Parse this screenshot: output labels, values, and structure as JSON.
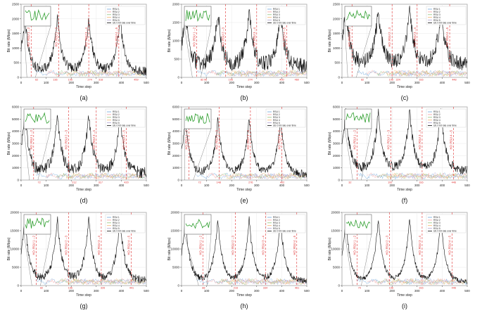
{
  "figure": {
    "panels": [
      {
        "label": "(a)",
        "ymax": 2500,
        "yticks": [
          0,
          500,
          1000,
          1500,
          2000,
          2500
        ],
        "ho_positions": [
          62,
          136,
          196,
          274,
          318,
          459
        ],
        "ho_labels": [
          "HO: RSU 1→2",
          "HO: RSU 2→3",
          "HO: RSU 3→4",
          "HO: RSU 4→5"
        ],
        "ho_at": [
          40,
          150,
          270,
          390
        ],
        "tick_labels": [
          "62",
          "136",
          "196",
          "274",
          "318",
          "459"
        ],
        "rsu_count": 5,
        "base_level": 200,
        "peak_level": 1850,
        "spikiness": 1.0
      },
      {
        "label": "(b)",
        "ymax": 2000,
        "yticks": [
          0,
          500,
          1000,
          1500,
          2000
        ],
        "ho_positions": [
          82,
          96,
          196,
          274,
          400,
          460
        ],
        "ho_labels": [
          "HO: RSU 1→2",
          "HO: RSU 2→3",
          "HO: RSU 3→4",
          "HO: RSU 4→5"
        ],
        "ho_at": [
          60,
          175,
          300,
          420
        ],
        "tick_labels": [
          "82",
          "96",
          "196",
          "274",
          "400",
          "460"
        ],
        "rsu_count": 5,
        "base_level": 300,
        "peak_level": 1500,
        "spikiness": 0.9
      },
      {
        "label": "(c)",
        "ymax": 2500,
        "yticks": [
          0,
          500,
          1000,
          1500,
          2000,
          2500
        ],
        "ho_positions": [
          82,
          196,
          224,
          316,
          448
        ],
        "ho_labels": [
          "HO: RSU 1→2",
          "HO: RSU 2→3",
          "HO: RSU 3→4",
          "HO: RSU 4→5"
        ],
        "ho_at": [
          40,
          200,
          300,
          430
        ],
        "tick_labels": [
          "82",
          "196",
          "224",
          "316",
          "448"
        ],
        "rsu_count": 5,
        "base_level": 450,
        "peak_level": 1900,
        "spikiness": 0.7
      },
      {
        "label": "(d)",
        "ymax": 6000,
        "yticks": [
          0,
          1000,
          2000,
          3000,
          4000,
          5000,
          6000
        ],
        "ho_positions": [
          72,
          212,
          317,
          420
        ],
        "ho_labels": [
          "HO: RSU 1→2",
          "HO: RSU 2→3",
          "HO: RSU 3→4",
          "HO: RSU 4→5"
        ],
        "ho_at": [
          50,
          190,
          300,
          420
        ],
        "tick_labels": [
          "72",
          "212",
          "317",
          "420"
        ],
        "rsu_count": 5,
        "base_level": 600,
        "peak_level": 4800,
        "spikiness": 1.0
      },
      {
        "label": "(e)",
        "ymax": 6000,
        "yticks": [
          0,
          1000,
          2000,
          3000,
          4000,
          5000,
          6000
        ],
        "ho_positions": [
          72,
          148,
          276,
          402
        ],
        "ho_labels": [
          "HO: RSU 1→2",
          "HO: RSU 2→3",
          "HO: RSU 3→4",
          "HO: RSU 4→5"
        ],
        "ho_at": [
          30,
          150,
          275,
          400
        ],
        "tick_labels": [
          "72",
          "148",
          "276",
          "402"
        ],
        "rsu_count": 5,
        "base_level": 500,
        "peak_level": 4600,
        "spikiness": 0.8
      },
      {
        "label": "(f)",
        "ymax": 6000,
        "yticks": [
          0,
          1000,
          2000,
          3000,
          4000,
          5000,
          6000
        ],
        "ho_positions": [
          32,
          192,
          316,
          446
        ],
        "ho_labels": [
          "HO: RSU 1→2",
          "HO: RSU 2→3",
          "HO: RSU 3→4",
          "HO: RSU 4→5"
        ],
        "ho_at": [
          60,
          195,
          320,
          445
        ],
        "tick_labels": [
          "32",
          "192",
          "316",
          "446"
        ],
        "rsu_count": 5,
        "base_level": 800,
        "peak_level": 5000,
        "spikiness": 0.6
      },
      {
        "label": "(g)",
        "ymax": 20000,
        "yticks": [
          0,
          5000,
          10000,
          15000,
          20000
        ],
        "ho_positions": [
          82,
          196,
          326,
          441
        ],
        "ho_labels": [
          "HO: RSU 1→2",
          "HO: RSU 2→3",
          "HO: RSU 3→4",
          "HO: RSU 4→5"
        ],
        "ho_at": [
          60,
          190,
          320,
          440
        ],
        "tick_labels": [
          "82",
          "196",
          "326",
          "441"
        ],
        "rsu_count": 5,
        "base_level": 1500,
        "peak_level": 17000,
        "spikiness": 0.9
      },
      {
        "label": "(h)",
        "ymax": 20000,
        "yticks": [
          0,
          5000,
          10000,
          15000,
          20000
        ],
        "ho_positions": [
          88,
          216,
          334,
          461
        ],
        "ho_labels": [
          "HO: RSU 1→2",
          "HO: RSU 2→3",
          "HO: RSU 3→4",
          "HO: RSU 4→5"
        ],
        "ho_at": [
          85,
          215,
          335,
          460
        ],
        "tick_labels": [
          "88",
          "216",
          "334",
          "461"
        ],
        "rsu_count": 5,
        "base_level": 1300,
        "peak_level": 17000,
        "spikiness": 0.8
      },
      {
        "label": "(i)",
        "ymax": 20000,
        "yticks": [
          0,
          5000,
          10000,
          15000,
          20000
        ],
        "ho_positions": [
          70,
          196,
          316,
          446
        ],
        "ho_labels": [
          "HO: RSU 1→2",
          "HO: RSU 2→3",
          "HO: RSU 3→4",
          "HO: RSU 4→5"
        ],
        "ho_at": [
          60,
          190,
          320,
          440
        ],
        "tick_labels": [
          "70",
          "196",
          "316",
          "446"
        ],
        "rsu_count": 5,
        "base_level": 1100,
        "peak_level": 17500,
        "spikiness": 0.7
      }
    ],
    "xticks": [
      0,
      100,
      200,
      300,
      400,
      500
    ],
    "xlabel": "Time step",
    "ylabel": "Bit rate (Mbps)",
    "legend": [
      "RSU 1",
      "RSU 2",
      "RSU 3",
      "RSU 4",
      "RSU 5",
      "UE 0 bit rate over time"
    ],
    "rsu_colors": [
      "#6fa8dc",
      "#f4a0a0",
      "#93c47d",
      "#f6b26b",
      "#b4a7d6"
    ],
    "ue_color": "#111111",
    "ho_color": "#e03030",
    "inset_color": "#2e9e2e"
  },
  "chart_data": {
    "type": "line",
    "title": "",
    "xlabel": "Time step",
    "ylabel": "Bit rate (Mbps)",
    "xlim": [
      0,
      500
    ],
    "subplots": 9,
    "series_names": [
      "RSU 1",
      "RSU 2",
      "RSU 3",
      "RSU 4",
      "RSU 5",
      "UE 0 bit rate over time"
    ],
    "note": "Each subplot shows UE bit rate over time with periodic peaks near RSU positions and red dashed handover markers."
  }
}
